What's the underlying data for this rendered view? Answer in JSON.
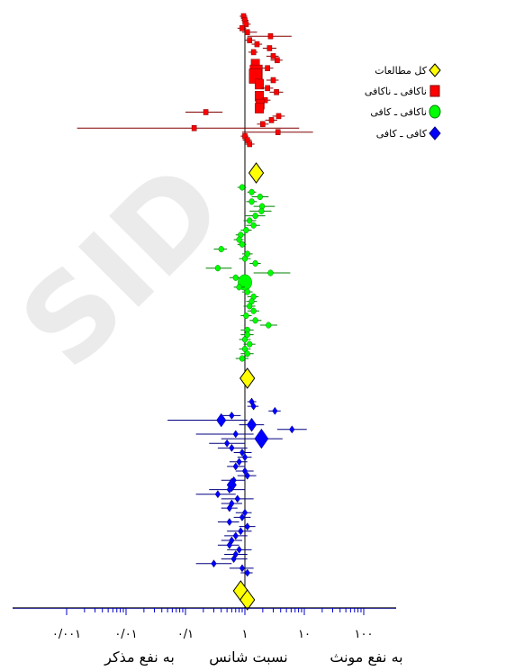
{
  "watermark": "SID",
  "chart_data": {
    "type": "forest-plot",
    "x_scale": "log",
    "xlim": [
      0.001,
      100
    ],
    "x_tick_labels": [
      "۰/۰۰۱",
      "۰/۰۱",
      "۰/۱",
      "۱",
      "۱۰",
      "۱۰۰"
    ],
    "x_tick_values": [
      0.001,
      0.01,
      0.1,
      1,
      10,
      100
    ],
    "xlabel": "نسبت شانس",
    "left_caption": "به نفع مذکر",
    "right_caption": "به نفع مونث",
    "reference_line": 1,
    "legend": [
      {
        "label": "کل مطالعات",
        "shape": "diamond",
        "color": "#ffff00"
      },
      {
        "label": "ناکافی ـ ناکافی",
        "shape": "square",
        "color": "#ff0000"
      },
      {
        "label": "ناکافی ـ کافی",
        "shape": "circle",
        "color": "#00ff00"
      },
      {
        "label": "کافی ـ کافی",
        "shape": "diamond",
        "color": "#0000ff"
      }
    ],
    "groups": [
      {
        "name": "ناکافی ـ ناکافی",
        "color": "#ff0000",
        "line_color": "#800000",
        "shape": "square",
        "studies": [
          {
            "or": 0.95,
            "lo": 0.82,
            "hi": 1.1,
            "w": 1
          },
          {
            "or": 1.0,
            "lo": 0.88,
            "hi": 1.15,
            "w": 1
          },
          {
            "or": 1.05,
            "lo": 0.9,
            "hi": 1.25,
            "w": 1
          },
          {
            "or": 0.9,
            "lo": 0.75,
            "hi": 1.05,
            "w": 1
          },
          {
            "or": 1.1,
            "lo": 0.9,
            "hi": 1.6,
            "w": 1
          },
          {
            "or": 2.7,
            "lo": 1.1,
            "hi": 6.1,
            "w": 1
          },
          {
            "or": 1.2,
            "lo": 1.0,
            "hi": 1.5,
            "w": 1
          },
          {
            "or": 1.6,
            "lo": 1.3,
            "hi": 1.95,
            "w": 1
          },
          {
            "or": 2.6,
            "lo": 2.0,
            "hi": 3.4,
            "w": 1
          },
          {
            "or": 1.4,
            "lo": 1.15,
            "hi": 1.65,
            "w": 1
          },
          {
            "or": 3.0,
            "lo": 2.3,
            "hi": 3.7,
            "w": 1
          },
          {
            "or": 3.5,
            "lo": 2.7,
            "hi": 4.3,
            "w": 1
          },
          {
            "or": 1.5,
            "lo": 1.3,
            "hi": 1.75,
            "w": 2
          },
          {
            "or": 2.4,
            "lo": 1.9,
            "hi": 3.0,
            "w": 1
          },
          {
            "or": 1.55,
            "lo": 1.35,
            "hi": 1.8,
            "w": 3
          },
          {
            "or": 1.5,
            "lo": 1.3,
            "hi": 1.75,
            "w": 3
          },
          {
            "or": 3.0,
            "lo": 2.3,
            "hi": 3.7,
            "w": 1
          },
          {
            "or": 1.75,
            "lo": 1.5,
            "hi": 2.05,
            "w": 2
          },
          {
            "or": 2.4,
            "lo": 1.9,
            "hi": 3.0,
            "w": 1
          },
          {
            "or": 3.4,
            "lo": 2.6,
            "hi": 4.4,
            "w": 1
          },
          {
            "or": 1.75,
            "lo": 1.5,
            "hi": 2.05,
            "w": 2
          },
          {
            "or": 2.2,
            "lo": 1.8,
            "hi": 2.7,
            "w": 1
          },
          {
            "or": 1.8,
            "lo": 1.55,
            "hi": 2.1,
            "w": 2
          },
          {
            "or": 1.75,
            "lo": 1.5,
            "hi": 2.05,
            "w": 2
          },
          {
            "or": 0.22,
            "lo": 0.1,
            "hi": 0.42,
            "w": 1
          },
          {
            "or": 3.7,
            "lo": 2.9,
            "hi": 4.7,
            "w": 1
          },
          {
            "or": 2.8,
            "lo": 2.2,
            "hi": 3.5,
            "w": 1
          },
          {
            "or": 2.0,
            "lo": 1.6,
            "hi": 2.5,
            "w": 1
          },
          {
            "or": 0.14,
            "lo": 0.0015,
            "hi": 8.2,
            "w": 1
          },
          {
            "or": 3.6,
            "lo": 0.9,
            "hi": 14.0,
            "w": 1
          },
          {
            "or": 1.0,
            "lo": 0.85,
            "hi": 1.15,
            "w": 1
          },
          {
            "or": 1.1,
            "lo": 0.92,
            "hi": 1.3,
            "w": 1
          },
          {
            "or": 1.2,
            "lo": 1.0,
            "hi": 1.45,
            "w": 1
          }
        ],
        "pooled": {
          "or": 1.55,
          "lo": 1.4,
          "hi": 1.7
        }
      },
      {
        "name": "ناکافی ـ کافی",
        "color": "#00ff00",
        "line_color": "#008000",
        "shape": "circle",
        "studies": [
          {
            "or": 0.9,
            "lo": 0.75,
            "hi": 1.05,
            "w": 1
          },
          {
            "or": 1.3,
            "lo": 1.1,
            "hi": 1.55,
            "w": 1
          },
          {
            "or": 1.8,
            "lo": 1.3,
            "hi": 2.5,
            "w": 1
          },
          {
            "or": 1.3,
            "lo": 1.05,
            "hi": 1.6,
            "w": 1
          },
          {
            "or": 1.95,
            "lo": 1.4,
            "hi": 3.2,
            "w": 1
          },
          {
            "or": 1.9,
            "lo": 1.2,
            "hi": 2.8,
            "w": 1
          },
          {
            "or": 1.5,
            "lo": 1.0,
            "hi": 2.2,
            "w": 1
          },
          {
            "or": 1.2,
            "lo": 0.95,
            "hi": 1.55,
            "w": 1
          },
          {
            "or": 1.4,
            "lo": 1.05,
            "hi": 1.8,
            "w": 1
          },
          {
            "or": 1.05,
            "lo": 0.85,
            "hi": 1.3,
            "w": 1
          },
          {
            "or": 0.85,
            "lo": 0.7,
            "hi": 1.0,
            "w": 1
          },
          {
            "or": 0.8,
            "lo": 0.65,
            "hi": 0.95,
            "w": 1
          },
          {
            "or": 0.9,
            "lo": 0.75,
            "hi": 1.05,
            "w": 1
          },
          {
            "or": 0.4,
            "lo": 0.3,
            "hi": 0.5,
            "w": 1
          },
          {
            "or": 1.1,
            "lo": 0.9,
            "hi": 1.35,
            "w": 1
          },
          {
            "or": 1.0,
            "lo": 0.8,
            "hi": 1.25,
            "w": 1
          },
          {
            "or": 1.5,
            "lo": 1.2,
            "hi": 1.85,
            "w": 1
          },
          {
            "or": 0.35,
            "lo": 0.22,
            "hi": 0.6,
            "w": 1
          },
          {
            "or": 2.7,
            "lo": 1.4,
            "hi": 5.8,
            "w": 1
          },
          {
            "or": 0.7,
            "lo": 0.55,
            "hi": 0.9,
            "w": 1
          },
          {
            "or": 1.0,
            "lo": 0.85,
            "hi": 1.15,
            "w": 3
          },
          {
            "or": 0.8,
            "lo": 0.65,
            "hi": 1.0,
            "w": 1
          },
          {
            "or": 1.1,
            "lo": 0.9,
            "hi": 1.35,
            "w": 1
          },
          {
            "or": 1.4,
            "lo": 1.1,
            "hi": 1.7,
            "w": 1
          },
          {
            "or": 1.3,
            "lo": 1.05,
            "hi": 1.6,
            "w": 1
          },
          {
            "or": 1.2,
            "lo": 0.95,
            "hi": 1.5,
            "w": 1
          },
          {
            "or": 1.4,
            "lo": 1.1,
            "hi": 1.75,
            "w": 1
          },
          {
            "or": 1.05,
            "lo": 0.85,
            "hi": 1.3,
            "w": 1
          },
          {
            "or": 1.5,
            "lo": 1.2,
            "hi": 1.9,
            "w": 1
          },
          {
            "or": 2.5,
            "lo": 1.8,
            "hi": 3.5,
            "w": 1
          },
          {
            "or": 1.1,
            "lo": 0.85,
            "hi": 1.4,
            "w": 1
          },
          {
            "or": 1.1,
            "lo": 0.85,
            "hi": 1.4,
            "w": 1
          },
          {
            "or": 1.0,
            "lo": 0.8,
            "hi": 1.25,
            "w": 1
          },
          {
            "or": 1.2,
            "lo": 0.95,
            "hi": 1.5,
            "w": 1
          },
          {
            "or": 1.0,
            "lo": 0.8,
            "hi": 1.25,
            "w": 1
          },
          {
            "or": 1.1,
            "lo": 0.85,
            "hi": 1.4,
            "w": 1
          },
          {
            "or": 0.9,
            "lo": 0.7,
            "hi": 1.15,
            "w": 1
          }
        ],
        "pooled": {
          "or": 1.1,
          "lo": 1.0,
          "hi": 1.25
        }
      },
      {
        "name": "کافی ـ کافی",
        "color": "#0000ff",
        "line_color": "#000080",
        "shape": "diamond",
        "studies": [
          {
            "or": 1.3,
            "lo": 1.1,
            "hi": 1.55,
            "w": 1
          },
          {
            "or": 1.4,
            "lo": 1.1,
            "hi": 1.7,
            "w": 1
          },
          {
            "or": 3.2,
            "lo": 2.5,
            "hi": 4.0,
            "w": 1
          },
          {
            "or": 0.6,
            "lo": 0.4,
            "hi": 0.85,
            "w": 1
          },
          {
            "or": 0.4,
            "lo": 0.05,
            "hi": 1.1,
            "w": 2
          },
          {
            "or": 1.3,
            "lo": 0.8,
            "hi": 2.1,
            "w": 2
          },
          {
            "or": 6.2,
            "lo": 3.5,
            "hi": 11.0,
            "w": 1
          },
          {
            "or": 0.7,
            "lo": 0.15,
            "hi": 1.4,
            "w": 1
          },
          {
            "or": 1.9,
            "lo": 0.4,
            "hi": 4.3,
            "w": 3
          },
          {
            "or": 0.5,
            "lo": 0.25,
            "hi": 1.0,
            "w": 1
          },
          {
            "or": 0.6,
            "lo": 0.35,
            "hi": 1.1,
            "w": 1
          },
          {
            "or": 0.9,
            "lo": 0.65,
            "hi": 1.3,
            "w": 1
          },
          {
            "or": 1.0,
            "lo": 0.75,
            "hi": 1.3,
            "w": 1
          },
          {
            "or": 0.8,
            "lo": 0.55,
            "hi": 1.1,
            "w": 1
          },
          {
            "or": 0.7,
            "lo": 0.5,
            "hi": 1.0,
            "w": 1
          },
          {
            "or": 1.0,
            "lo": 0.7,
            "hi": 1.4,
            "w": 1
          },
          {
            "or": 1.1,
            "lo": 0.75,
            "hi": 1.55,
            "w": 1
          },
          {
            "or": 0.65,
            "lo": 0.4,
            "hi": 1.0,
            "w": 1
          },
          {
            "or": 0.6,
            "lo": 0.5,
            "hi": 0.72,
            "w": 2
          },
          {
            "or": 0.55,
            "lo": 0.25,
            "hi": 1.0,
            "w": 1
          },
          {
            "or": 0.35,
            "lo": 0.15,
            "hi": 0.7,
            "w": 1
          },
          {
            "or": 0.75,
            "lo": 0.4,
            "hi": 1.4,
            "w": 1
          },
          {
            "or": 0.6,
            "lo": 0.4,
            "hi": 0.9,
            "w": 1
          },
          {
            "or": 0.55,
            "lo": 0.4,
            "hi": 0.75,
            "w": 1
          },
          {
            "or": 1.0,
            "lo": 0.7,
            "hi": 1.3,
            "w": 1
          },
          {
            "or": 0.9,
            "lo": 0.65,
            "hi": 1.25,
            "w": 1
          },
          {
            "or": 0.55,
            "lo": 0.35,
            "hi": 0.8,
            "w": 1
          },
          {
            "or": 1.1,
            "lo": 0.8,
            "hi": 1.5,
            "w": 1
          },
          {
            "or": 0.85,
            "lo": 0.5,
            "hi": 1.3,
            "w": 1
          },
          {
            "or": 0.7,
            "lo": 0.45,
            "hi": 1.1,
            "w": 1
          },
          {
            "or": 0.6,
            "lo": 0.4,
            "hi": 0.9,
            "w": 1
          },
          {
            "or": 0.55,
            "lo": 0.35,
            "hi": 0.8,
            "w": 1
          },
          {
            "or": 0.8,
            "lo": 0.5,
            "hi": 1.3,
            "w": 1
          },
          {
            "or": 0.7,
            "lo": 0.45,
            "hi": 1.1,
            "w": 1
          },
          {
            "or": 0.65,
            "lo": 0.4,
            "hi": 1.1,
            "w": 1
          },
          {
            "or": 0.3,
            "lo": 0.15,
            "hi": 0.6,
            "w": 1
          },
          {
            "or": 0.9,
            "lo": 0.55,
            "hi": 1.4,
            "w": 1
          },
          {
            "or": 1.1,
            "lo": 0.85,
            "hi": 1.35,
            "w": 1
          }
        ],
        "pooled": {
          "or": 0.85,
          "lo": 0.78,
          "hi": 0.92
        }
      }
    ],
    "overall": {
      "or": 1.1,
      "lo": 1.0,
      "hi": 1.2
    }
  }
}
